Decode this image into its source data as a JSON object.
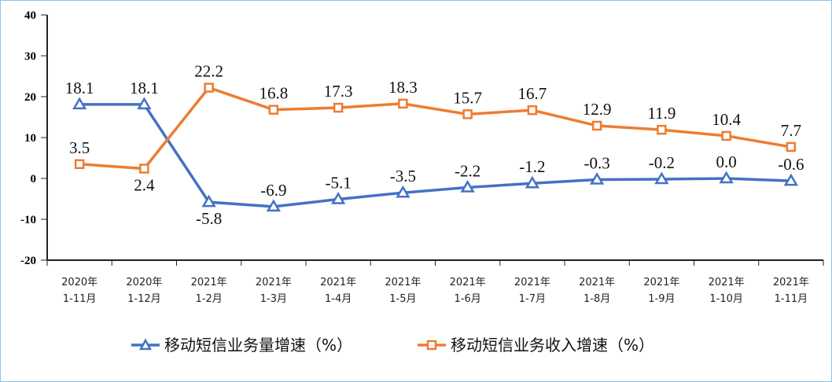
{
  "chart_data": {
    "type": "line",
    "categories": [
      [
        "2020年",
        "1-11月"
      ],
      [
        "2020年",
        "1-12月"
      ],
      [
        "2021年",
        "1-2月"
      ],
      [
        "2021年",
        "1-3月"
      ],
      [
        "2021年",
        "1-4月"
      ],
      [
        "2021年",
        "1-5月"
      ],
      [
        "2021年",
        "1-6月"
      ],
      [
        "2021年",
        "1-7月"
      ],
      [
        "2021年",
        "1-8月"
      ],
      [
        "2021年",
        "1-9月"
      ],
      [
        "2021年",
        "1-10月"
      ],
      [
        "2021年",
        "1-11月"
      ]
    ],
    "ylim": [
      -20,
      40
    ],
    "yticks": [
      40,
      30,
      20,
      10,
      0,
      -10,
      -20
    ],
    "grid": false,
    "legend_position": "bottom",
    "series": [
      {
        "name": "移动短信业务量增速（%）",
        "color": "#4472c4",
        "marker": "triangle",
        "values": [
          18.1,
          18.1,
          -5.8,
          -6.9,
          -5.1,
          -3.5,
          -2.2,
          -1.2,
          -0.3,
          -0.2,
          0.0,
          -0.6
        ],
        "labels": [
          "18.1",
          "18.1",
          "-5.8",
          "-6.9",
          "-5.1",
          "-3.5",
          "-2.2",
          "-1.2",
          "-0.3",
          "-0.2",
          "0.0",
          "-0.6"
        ]
      },
      {
        "name": "移动短信业务收入增速（%）",
        "color": "#ed7d31",
        "marker": "square",
        "values": [
          3.5,
          2.4,
          22.2,
          16.8,
          17.3,
          18.3,
          15.7,
          16.7,
          12.9,
          11.9,
          10.4,
          7.7
        ],
        "labels": [
          "3.5",
          "2.4",
          "22.2",
          "16.8",
          "17.3",
          "18.3",
          "15.7",
          "16.7",
          "12.9",
          "11.9",
          "10.4",
          "7.7"
        ]
      }
    ]
  }
}
